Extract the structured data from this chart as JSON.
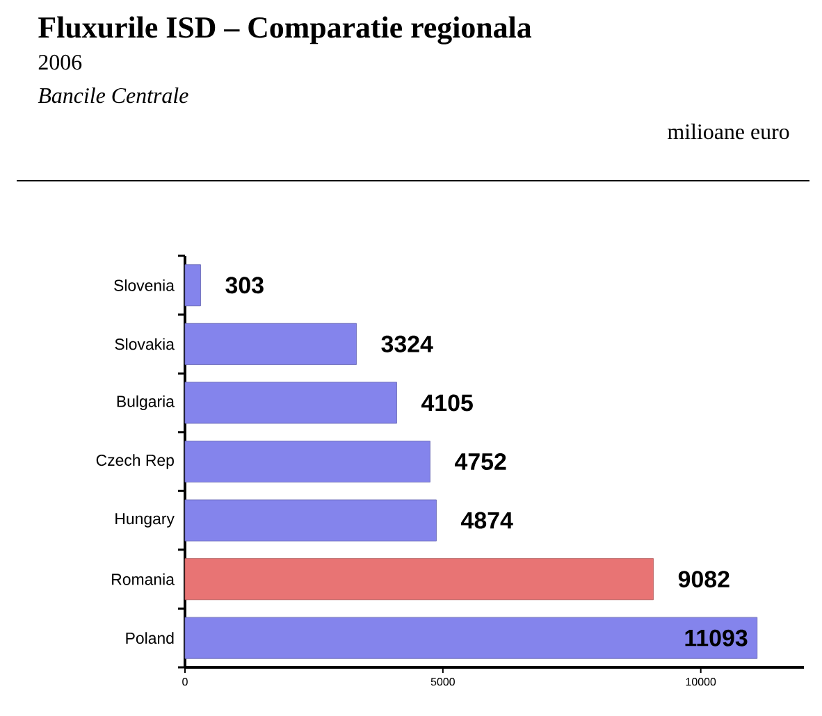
{
  "chart_data": {
    "type": "bar",
    "orientation": "horizontal",
    "title": "Fluxurile ISD – Comparatie regionala",
    "subtitle": "2006",
    "annotations": [
      "Bancile Centrale",
      "milioane euro"
    ],
    "categories": [
      "Slovenia",
      "Slovakia",
      "Bulgaria",
      "Czech Rep",
      "Hungary",
      "Romania",
      "Poland"
    ],
    "values": [
      303,
      3324,
      4105,
      4752,
      4874,
      9082,
      11093
    ],
    "colors": [
      "#8484ec",
      "#8484ec",
      "#8484ec",
      "#8484ec",
      "#8484ec",
      "#e87474",
      "#8484ec"
    ],
    "data_labels": true,
    "xlim": [
      0,
      12000
    ],
    "xticks": [
      0,
      5000,
      10000
    ]
  }
}
